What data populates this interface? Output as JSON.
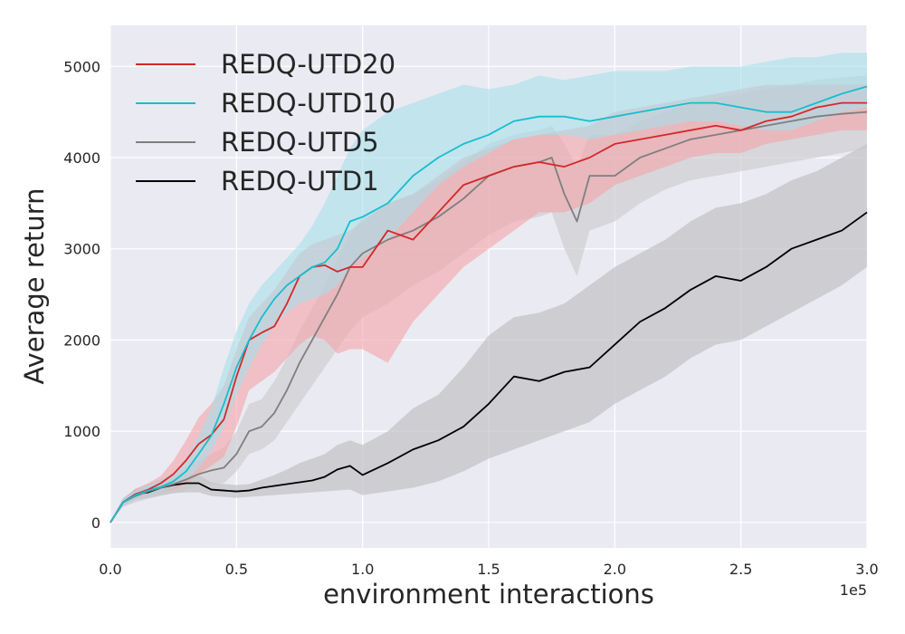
{
  "chart_data": {
    "type": "line",
    "title": "",
    "xlabel": "environment interactions",
    "ylabel": "Average return",
    "x_multiplier_label": "1e5",
    "xlim": [
      0,
      3.0
    ],
    "ylim": [
      -280,
      5450
    ],
    "x_ticks": [
      0.0,
      0.5,
      1.0,
      1.5,
      2.0,
      2.5,
      3.0
    ],
    "x_tick_labels": [
      "0.0",
      "0.5",
      "1.0",
      "1.5",
      "2.0",
      "2.5",
      "3.0"
    ],
    "y_ticks": [
      0,
      1000,
      2000,
      3000,
      4000,
      5000
    ],
    "y_tick_labels": [
      "0",
      "1000",
      "2000",
      "3000",
      "4000",
      "5000"
    ],
    "grid": true,
    "legend_position": "top-left",
    "background": "#eaeaf2",
    "series": [
      {
        "name": "REDQ-UTD20",
        "color": "#d62728",
        "band_color": "#f4a3a8",
        "x": [
          0.0,
          0.05,
          0.1,
          0.15,
          0.2,
          0.25,
          0.3,
          0.35,
          0.4,
          0.45,
          0.5,
          0.55,
          0.6,
          0.65,
          0.7,
          0.75,
          0.8,
          0.85,
          0.9,
          0.95,
          1.0,
          1.1,
          1.2,
          1.3,
          1.4,
          1.5,
          1.6,
          1.7,
          1.8,
          1.9,
          2.0,
          2.1,
          2.2,
          2.3,
          2.4,
          2.5,
          2.6,
          2.7,
          2.8,
          2.9,
          3.0
        ],
        "y": [
          0,
          220,
          310,
          360,
          430,
          530,
          680,
          860,
          960,
          1130,
          1600,
          2000,
          2080,
          2150,
          2400,
          2700,
          2800,
          2820,
          2750,
          2800,
          2800,
          3200,
          3100,
          3400,
          3700,
          3800,
          3900,
          3950,
          3900,
          4000,
          4150,
          4200,
          4250,
          4300,
          4350,
          4300,
          4400,
          4450,
          4550,
          4600,
          4600
        ],
        "lower": [
          0,
          180,
          250,
          300,
          330,
          360,
          420,
          530,
          620,
          720,
          1050,
          1450,
          1550,
          1650,
          1800,
          1950,
          2050,
          2000,
          1850,
          1900,
          1900,
          1750,
          2200,
          2500,
          2800,
          3000,
          3200,
          3400,
          3400,
          3500,
          3700,
          3800,
          3900,
          4000,
          4050,
          4050,
          4150,
          4200,
          4250,
          4300,
          4300
        ],
        "upper": [
          0,
          260,
          370,
          430,
          510,
          680,
          900,
          1150,
          1300,
          1500,
          1900,
          2250,
          2400,
          2550,
          2750,
          2950,
          3050,
          3100,
          3150,
          3200,
          3300,
          3500,
          3600,
          3800,
          4000,
          4100,
          4200,
          4250,
          4300,
          4350,
          4500,
          4550,
          4600,
          4650,
          4700,
          4750,
          4800,
          4800,
          4800,
          4800,
          4800
        ]
      },
      {
        "name": "REDQ-UTD10",
        "color": "#17becf",
        "band_color": "#a6dfe9",
        "x": [
          0.0,
          0.05,
          0.1,
          0.15,
          0.2,
          0.25,
          0.3,
          0.35,
          0.4,
          0.45,
          0.5,
          0.55,
          0.6,
          0.65,
          0.7,
          0.75,
          0.8,
          0.85,
          0.9,
          0.95,
          1.0,
          1.1,
          1.2,
          1.3,
          1.4,
          1.5,
          1.6,
          1.7,
          1.8,
          1.9,
          2.0,
          2.1,
          2.2,
          2.3,
          2.4,
          2.5,
          2.6,
          2.7,
          2.8,
          2.9,
          3.0
        ],
        "y": [
          0,
          220,
          300,
          350,
          390,
          450,
          560,
          750,
          950,
          1300,
          1700,
          2000,
          2250,
          2450,
          2600,
          2700,
          2800,
          2850,
          3000,
          3300,
          3350,
          3500,
          3800,
          4000,
          4150,
          4250,
          4400,
          4450,
          4450,
          4400,
          4450,
          4500,
          4550,
          4600,
          4600,
          4550,
          4500,
          4500,
          4600,
          4700,
          4780
        ],
        "lower": [
          0,
          180,
          250,
          300,
          330,
          380,
          460,
          600,
          780,
          1050,
          1400,
          1700,
          1950,
          2150,
          2300,
          2400,
          2450,
          2500,
          2600,
          2800,
          2900,
          3100,
          3400,
          3700,
          3900,
          4050,
          4200,
          4250,
          4250,
          4200,
          4250,
          4300,
          4350,
          4400,
          4400,
          4350,
          4300,
          4300,
          4400,
          4500,
          4550
        ],
        "upper": [
          0,
          260,
          350,
          410,
          460,
          540,
          700,
          950,
          1250,
          1700,
          2100,
          2400,
          2600,
          2750,
          2900,
          3050,
          3250,
          3500,
          3800,
          4100,
          4300,
          4500,
          4600,
          4700,
          4800,
          4750,
          4800,
          4900,
          4850,
          4900,
          4950,
          4950,
          4950,
          5000,
          5000,
          5000,
          5050,
          5100,
          5100,
          5150,
          5150
        ]
      },
      {
        "name": "REDQ-UTD5",
        "color": "#7f7f7f",
        "band_color": "#c8c8cc",
        "x": [
          0.0,
          0.05,
          0.1,
          0.15,
          0.2,
          0.25,
          0.3,
          0.35,
          0.4,
          0.45,
          0.5,
          0.55,
          0.6,
          0.65,
          0.7,
          0.75,
          0.8,
          0.85,
          0.9,
          0.95,
          1.0,
          1.1,
          1.2,
          1.3,
          1.4,
          1.5,
          1.6,
          1.7,
          1.75,
          1.8,
          1.85,
          1.9,
          2.0,
          2.1,
          2.2,
          2.3,
          2.4,
          2.5,
          2.6,
          2.7,
          2.8,
          2.9,
          3.0
        ],
        "y": [
          0,
          220,
          290,
          340,
          380,
          420,
          470,
          530,
          570,
          600,
          750,
          1000,
          1050,
          1200,
          1450,
          1750,
          2000,
          2250,
          2500,
          2800,
          2950,
          3100,
          3200,
          3350,
          3550,
          3800,
          3900,
          3950,
          4000,
          3600,
          3300,
          3800,
          3800,
          4000,
          4100,
          4200,
          4250,
          4300,
          4350,
          4400,
          4450,
          4480,
          4500
        ],
        "lower": [
          0,
          170,
          220,
          260,
          290,
          320,
          360,
          400,
          420,
          430,
          560,
          750,
          800,
          900,
          1100,
          1300,
          1500,
          1700,
          1900,
          2100,
          2250,
          2400,
          2600,
          2750,
          2950,
          3150,
          3300,
          3350,
          3400,
          3000,
          2700,
          3200,
          3300,
          3500,
          3650,
          3750,
          3800,
          3850,
          3900,
          3950,
          4000,
          4050,
          4100
        ],
        "upper": [
          0,
          270,
          360,
          420,
          470,
          520,
          600,
          680,
          750,
          820,
          1000,
          1300,
          1350,
          1550,
          1800,
          2100,
          2350,
          2600,
          2900,
          3150,
          3350,
          3500,
          3600,
          3750,
          3950,
          4150,
          4250,
          4300,
          4350,
          4150,
          3900,
          4250,
          4250,
          4400,
          4500,
          4600,
          4650,
          4700,
          4750,
          4800,
          4850,
          4880,
          4900
        ]
      },
      {
        "name": "REDQ-UTD1",
        "color": "#000000",
        "band_color": "#b9b9bd",
        "x": [
          0.0,
          0.05,
          0.1,
          0.15,
          0.2,
          0.25,
          0.3,
          0.35,
          0.4,
          0.45,
          0.5,
          0.55,
          0.6,
          0.65,
          0.7,
          0.75,
          0.8,
          0.85,
          0.9,
          0.95,
          1.0,
          1.1,
          1.2,
          1.3,
          1.4,
          1.5,
          1.6,
          1.7,
          1.8,
          1.9,
          2.0,
          2.1,
          2.2,
          2.3,
          2.4,
          2.5,
          2.6,
          2.7,
          2.8,
          2.9,
          3.0
        ],
        "y": [
          0,
          220,
          310,
          330,
          380,
          410,
          430,
          430,
          360,
          350,
          340,
          350,
          380,
          400,
          420,
          440,
          460,
          500,
          580,
          620,
          520,
          650,
          800,
          900,
          1050,
          1300,
          1600,
          1550,
          1650,
          1700,
          1950,
          2200,
          2350,
          2550,
          2700,
          2650,
          2800,
          3000,
          3100,
          3200,
          3400
        ],
        "lower": [
          0,
          180,
          250,
          270,
          300,
          320,
          330,
          330,
          290,
          280,
          270,
          280,
          290,
          300,
          310,
          320,
          330,
          340,
          350,
          360,
          300,
          340,
          380,
          450,
          560,
          700,
          800,
          900,
          1000,
          1100,
          1300,
          1450,
          1600,
          1800,
          1950,
          2000,
          2150,
          2300,
          2450,
          2600,
          2800
        ],
        "upper": [
          0,
          260,
          370,
          390,
          450,
          490,
          520,
          520,
          440,
          420,
          410,
          420,
          470,
          520,
          580,
          650,
          700,
          750,
          850,
          900,
          850,
          1000,
          1250,
          1400,
          1700,
          2050,
          2250,
          2300,
          2400,
          2600,
          2800,
          2950,
          3100,
          3300,
          3450,
          3500,
          3600,
          3750,
          3850,
          4000,
          4150
        ]
      }
    ]
  }
}
